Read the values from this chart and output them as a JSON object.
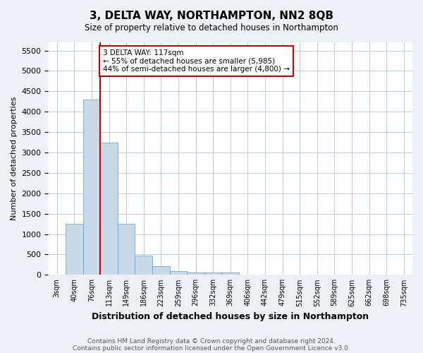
{
  "title": "3, DELTA WAY, NORTHAMPTON, NN2 8QB",
  "subtitle": "Size of property relative to detached houses in Northampton",
  "xlabel": "Distribution of detached houses by size in Northampton",
  "ylabel": "Number of detached properties",
  "footnote1": "Contains HM Land Registry data © Crown copyright and database right 2024.",
  "footnote2": "Contains public sector information licensed under the Open Government Licence v3.0.",
  "annotation_line1": "3 DELTA WAY: 117sqm",
  "annotation_line2": "← 55% of detached houses are smaller (5,985)",
  "annotation_line3": "44% of semi-detached houses are larger (4,800) →",
  "bin_labels": [
    "3sqm",
    "40sqm",
    "76sqm",
    "113sqm",
    "149sqm",
    "186sqm",
    "223sqm",
    "259sqm",
    "296sqm",
    "332sqm",
    "369sqm",
    "406sqm",
    "442sqm",
    "479sqm",
    "515sqm",
    "552sqm",
    "589sqm",
    "625sqm",
    "662sqm",
    "698sqm",
    "735sqm"
  ],
  "bar_values": [
    0,
    1250,
    4300,
    3250,
    1250,
    480,
    220,
    90,
    60,
    50,
    55,
    0,
    0,
    0,
    0,
    0,
    0,
    0,
    0,
    0,
    0
  ],
  "bar_color": "#c8d9e8",
  "bar_edge_color": "#5b9ac4",
  "red_line_x": 2.5,
  "ylim": [
    0,
    5700
  ],
  "yticks": [
    0,
    500,
    1000,
    1500,
    2000,
    2500,
    3000,
    3500,
    4000,
    4500,
    5000,
    5500
  ],
  "bg_color": "#edf1f7",
  "plot_bg_color": "#ffffff",
  "grid_color": "#c0ccd8",
  "annotation_box_edge": "#cc0000",
  "red_line_color": "#cc0000"
}
